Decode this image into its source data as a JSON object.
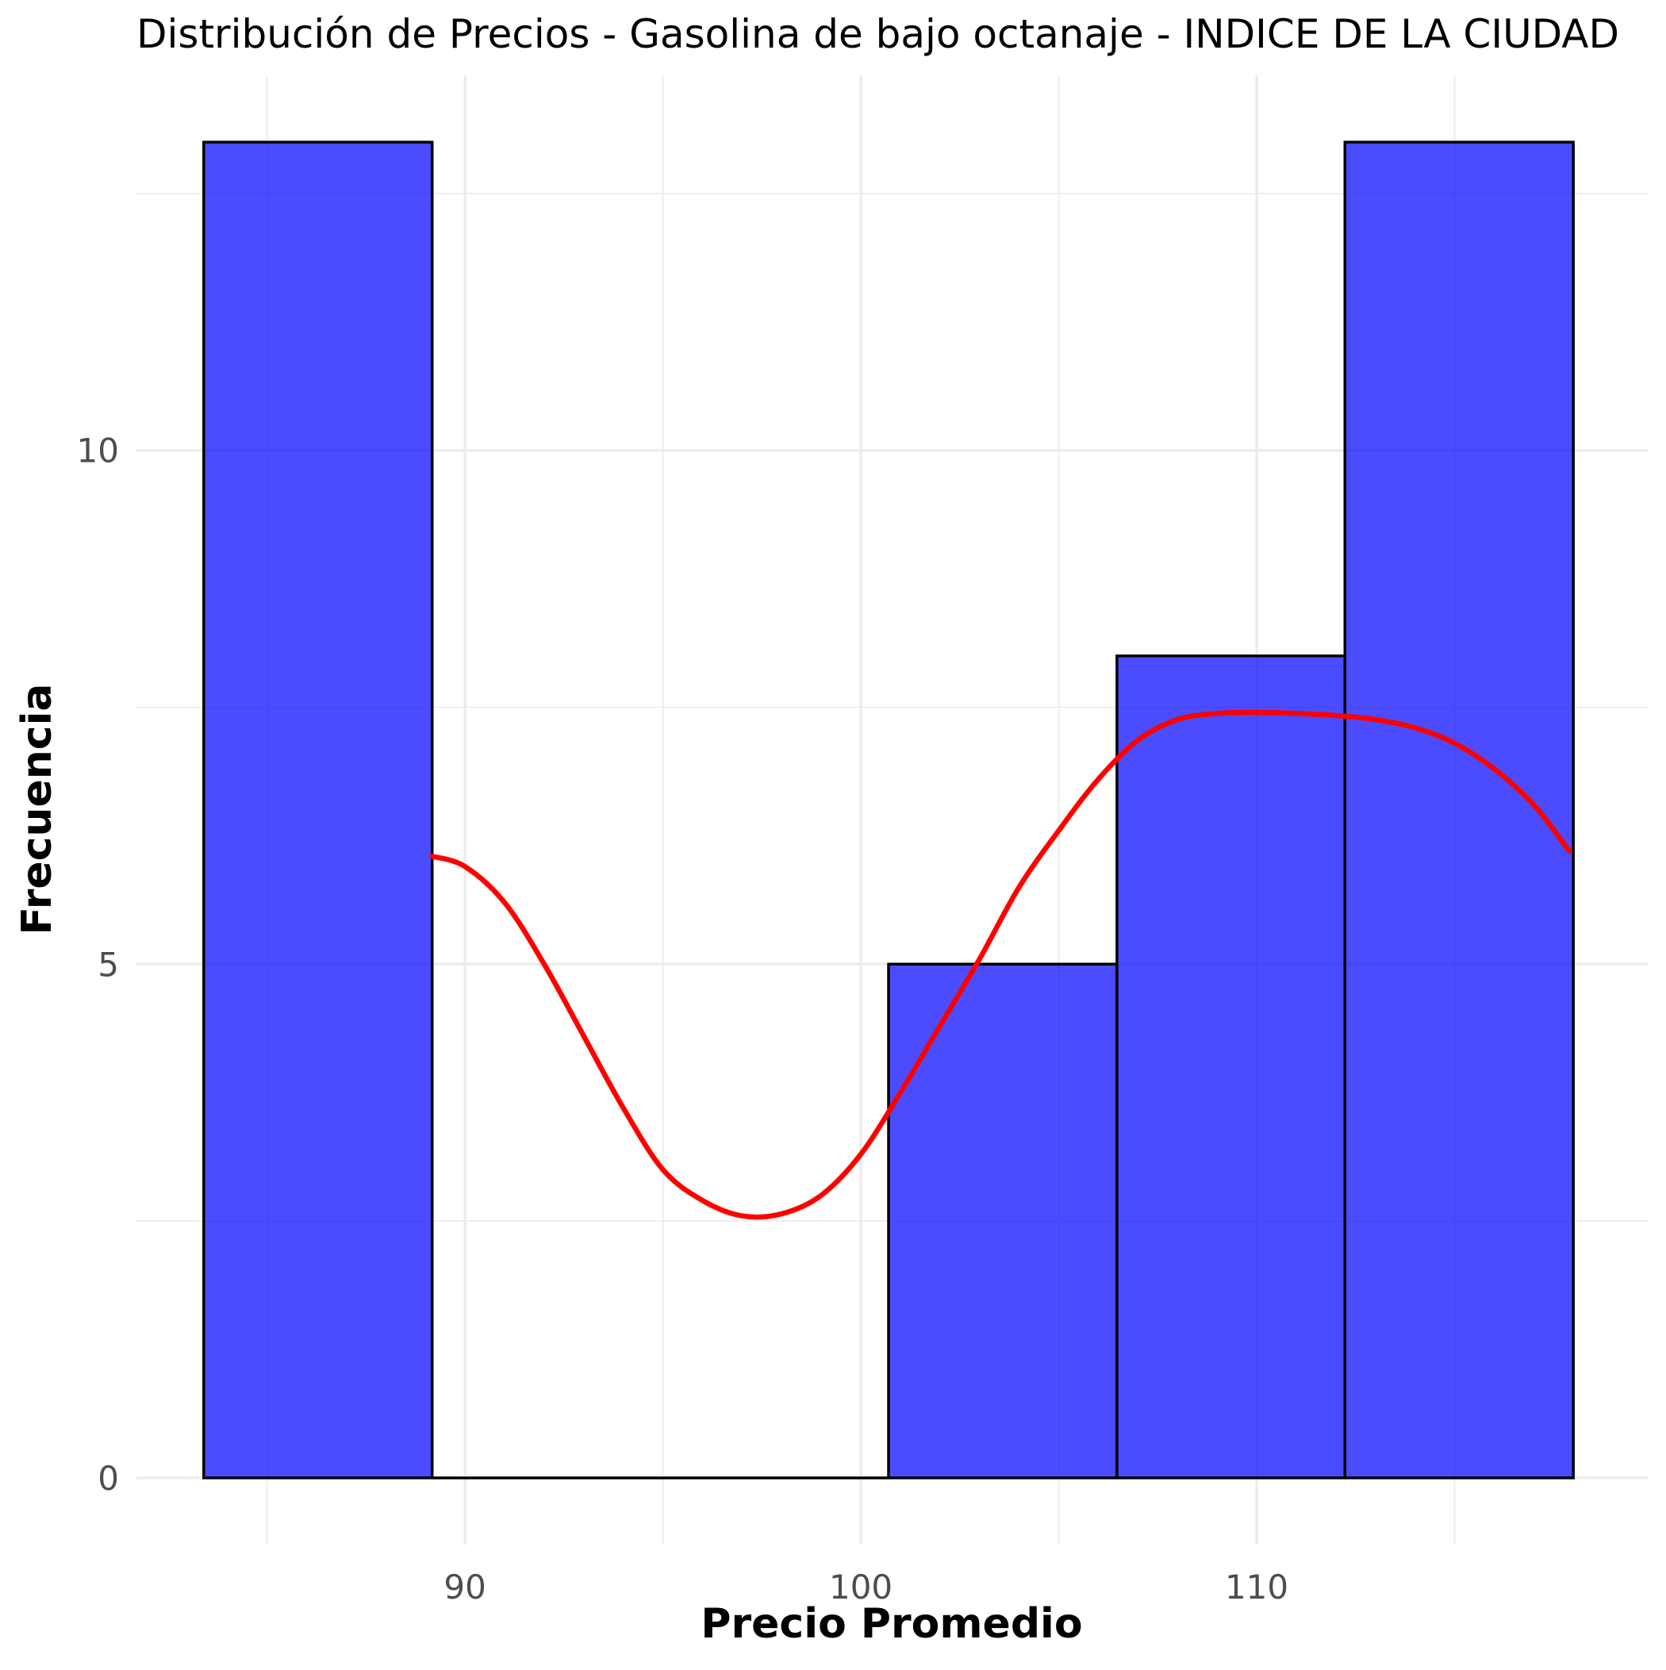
{
  "chart_data": {
    "type": "bar",
    "subtype": "histogram",
    "title": "Distribución de Precios - Gasolina de bajo octanaje - INDICE DE LA CIUDAD",
    "xlabel": "Precio Promedio",
    "ylabel": "Frecuencia",
    "xlim": [
      81.7,
      119.9
    ],
    "ylim": [
      -0.65,
      13.65
    ],
    "x_ticks": [
      90,
      100,
      110
    ],
    "x_minor_ticks": [
      85,
      95,
      105,
      115
    ],
    "y_ticks": [
      0,
      5,
      10
    ],
    "y_minor_ticks": [
      2.5,
      7.5,
      12.5
    ],
    "grid": true,
    "bins": [
      {
        "x0": 83.4,
        "x1": 89.17,
        "count": 13
      },
      {
        "x0": 89.17,
        "x1": 94.93,
        "count": 0
      },
      {
        "x0": 94.93,
        "x1": 100.7,
        "count": 0
      },
      {
        "x0": 100.7,
        "x1": 106.47,
        "count": 5
      },
      {
        "x0": 106.47,
        "x1": 112.23,
        "count": 8
      },
      {
        "x0": 112.23,
        "x1": 118.0,
        "count": 13
      }
    ],
    "density_curve": {
      "x": [
        89.17,
        90.0,
        91.0,
        92.0,
        93.0,
        94.0,
        95.0,
        96.0,
        97.0,
        98.0,
        99.0,
        100.0,
        101.0,
        102.0,
        103.0,
        104.0,
        105.0,
        106.0,
        107.0,
        108.0,
        109.0,
        110.0,
        111.0,
        112.0,
        113.0,
        114.0,
        115.0,
        116.0,
        117.0,
        117.9
      ],
      "y": [
        6.05,
        5.95,
        5.6,
        5.0,
        4.3,
        3.6,
        3.0,
        2.7,
        2.55,
        2.57,
        2.75,
        3.15,
        3.75,
        4.4,
        5.05,
        5.75,
        6.3,
        6.8,
        7.18,
        7.38,
        7.44,
        7.45,
        7.44,
        7.42,
        7.38,
        7.3,
        7.15,
        6.9,
        6.55,
        6.1
      ]
    },
    "colors": {
      "bar_fill": "#0000ff",
      "bar_outline": "#000000",
      "density_line": "#ff0000"
    }
  }
}
